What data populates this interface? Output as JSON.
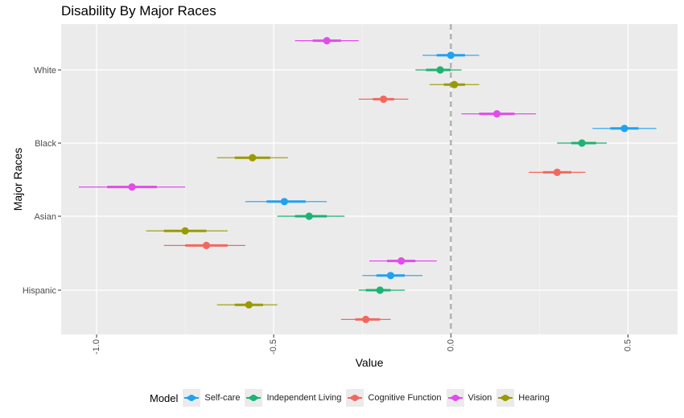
{
  "chart_data": {
    "type": "scatter",
    "title": "Disability By Major Races",
    "xlabel": "Value",
    "ylabel": "Major Races",
    "xlim": [
      -1.1,
      0.64
    ],
    "x_ticks": [
      "-1.0",
      "-0.5",
      "0.0",
      "0.5"
    ],
    "x_tick_values": [
      -1.0,
      -0.5,
      0.0,
      0.5
    ],
    "categories": [
      "White",
      "Black",
      "Asian",
      "Hispanic"
    ],
    "reference_line": 0,
    "legend_title": "Model",
    "legend_position": "bottom",
    "series": [
      {
        "name": "Self-care",
        "color": "#1FA2F0",
        "points": [
          {
            "race": "White",
            "estimate": 0.0,
            "inner": [
              -0.04,
              0.04
            ],
            "outer": [
              -0.08,
              0.08
            ]
          },
          {
            "race": "Black",
            "estimate": 0.49,
            "inner": [
              0.45,
              0.53
            ],
            "outer": [
              0.4,
              0.58
            ]
          },
          {
            "race": "Asian",
            "estimate": -0.47,
            "inner": [
              -0.52,
              -0.41
            ],
            "outer": [
              -0.58,
              -0.35
            ]
          },
          {
            "race": "Hispanic",
            "estimate": -0.17,
            "inner": [
              -0.21,
              -0.13
            ],
            "outer": [
              -0.25,
              -0.08
            ]
          }
        ]
      },
      {
        "name": "Independent Living",
        "color": "#1DB372",
        "points": [
          {
            "race": "White",
            "estimate": -0.03,
            "inner": [
              -0.07,
              0.0
            ],
            "outer": [
              -0.1,
              0.03
            ]
          },
          {
            "race": "Black",
            "estimate": 0.37,
            "inner": [
              0.34,
              0.41
            ],
            "outer": [
              0.3,
              0.44
            ]
          },
          {
            "race": "Asian",
            "estimate": -0.4,
            "inner": [
              -0.44,
              -0.35
            ],
            "outer": [
              -0.49,
              -0.3
            ]
          },
          {
            "race": "Hispanic",
            "estimate": -0.2,
            "inner": [
              -0.24,
              -0.17
            ],
            "outer": [
              -0.26,
              -0.13
            ]
          }
        ]
      },
      {
        "name": "Cognitive Function",
        "color": "#F2685F",
        "points": [
          {
            "race": "White",
            "estimate": -0.19,
            "inner": [
              -0.22,
              -0.16
            ],
            "outer": [
              -0.26,
              -0.12
            ]
          },
          {
            "race": "Black",
            "estimate": 0.3,
            "inner": [
              0.26,
              0.34
            ],
            "outer": [
              0.22,
              0.38
            ]
          },
          {
            "race": "Asian",
            "estimate": -0.69,
            "inner": [
              -0.75,
              -0.63
            ],
            "outer": [
              -0.81,
              -0.58
            ]
          },
          {
            "race": "Hispanic",
            "estimate": -0.24,
            "inner": [
              -0.27,
              -0.2
            ],
            "outer": [
              -0.31,
              -0.17
            ]
          }
        ]
      },
      {
        "name": "Vision",
        "color": "#E04DEB",
        "points": [
          {
            "race": "White",
            "estimate": -0.35,
            "inner": [
              -0.39,
              -0.31
            ],
            "outer": [
              -0.44,
              -0.26
            ]
          },
          {
            "race": "Black",
            "estimate": 0.13,
            "inner": [
              0.08,
              0.18
            ],
            "outer": [
              0.03,
              0.24
            ]
          },
          {
            "race": "Asian",
            "estimate": -0.9,
            "inner": [
              -0.97,
              -0.83
            ],
            "outer": [
              -1.05,
              -0.75
            ]
          },
          {
            "race": "Hispanic",
            "estimate": -0.14,
            "inner": [
              -0.18,
              -0.1
            ],
            "outer": [
              -0.23,
              -0.04
            ]
          }
        ]
      },
      {
        "name": "Hearing",
        "color": "#9A9A00",
        "points": [
          {
            "race": "White",
            "estimate": 0.01,
            "inner": [
              -0.02,
              0.04
            ],
            "outer": [
              -0.06,
              0.08
            ]
          },
          {
            "race": "Black",
            "estimate": -0.56,
            "inner": [
              -0.61,
              -0.51
            ],
            "outer": [
              -0.66,
              -0.46
            ]
          },
          {
            "race": "Asian",
            "estimate": -0.75,
            "inner": [
              -0.81,
              -0.69
            ],
            "outer": [
              -0.86,
              -0.63
            ]
          },
          {
            "race": "Hispanic",
            "estimate": -0.57,
            "inner": [
              -0.61,
              -0.53
            ],
            "outer": [
              -0.66,
              -0.49
            ]
          }
        ]
      }
    ]
  }
}
